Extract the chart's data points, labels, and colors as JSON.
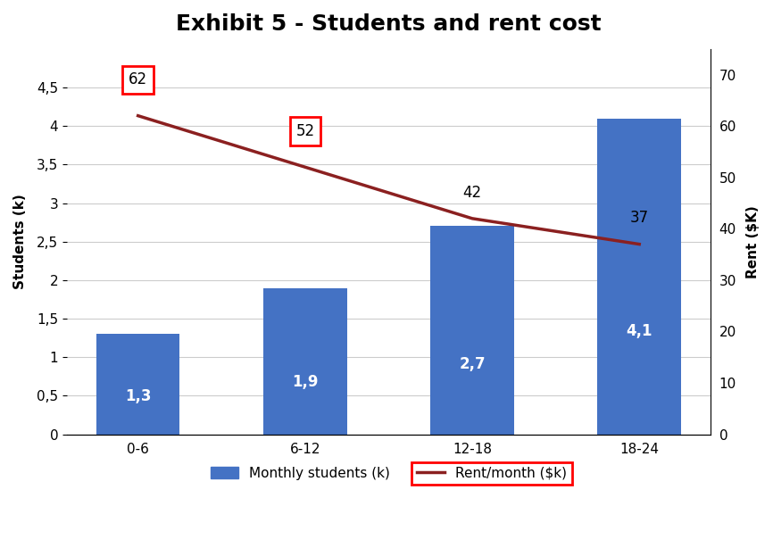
{
  "title": "Exhibit 5 - Students and rent cost",
  "categories": [
    "0-6",
    "6-12",
    "12-18",
    "18-24"
  ],
  "bar_values": [
    1.3,
    1.9,
    2.7,
    4.1
  ],
  "bar_labels": [
    "1,3",
    "1,9",
    "2,7",
    "4,1"
  ],
  "bar_color": "#4472C4",
  "rent_values": [
    62,
    52,
    42,
    37
  ],
  "rent_labels": [
    "62",
    "52",
    "42",
    "37"
  ],
  "rent_color": "#8B2020",
  "left_ylabel": "Students (k)",
  "right_ylabel": "Rent ($K)",
  "ylim_left": [
    0,
    5.0
  ],
  "ylim_right": [
    0,
    75
  ],
  "yticks_left": [
    0,
    0.5,
    1.0,
    1.5,
    2.0,
    2.5,
    3.0,
    3.5,
    4.0,
    4.5
  ],
  "ytick_labels_left": [
    "0",
    "0,5",
    "1",
    "1,5",
    "2",
    "2,5",
    "3",
    "3,5",
    "4",
    "4,5"
  ],
  "yticks_right": [
    0,
    10,
    20,
    30,
    40,
    50,
    60,
    70
  ],
  "legend_bar_label": "Monthly students (k)",
  "legend_line_label": "Rent/month ($k)",
  "bg_color": "#ffffff",
  "grid_color": "#cccccc",
  "title_fontsize": 18,
  "label_fontsize": 11,
  "tick_fontsize": 11,
  "bar_label_fontsize": 12,
  "rent_label_fontsize": 12,
  "rent_boxed_indices": [
    0,
    1
  ],
  "rent_plain_indices": [
    2,
    3
  ]
}
